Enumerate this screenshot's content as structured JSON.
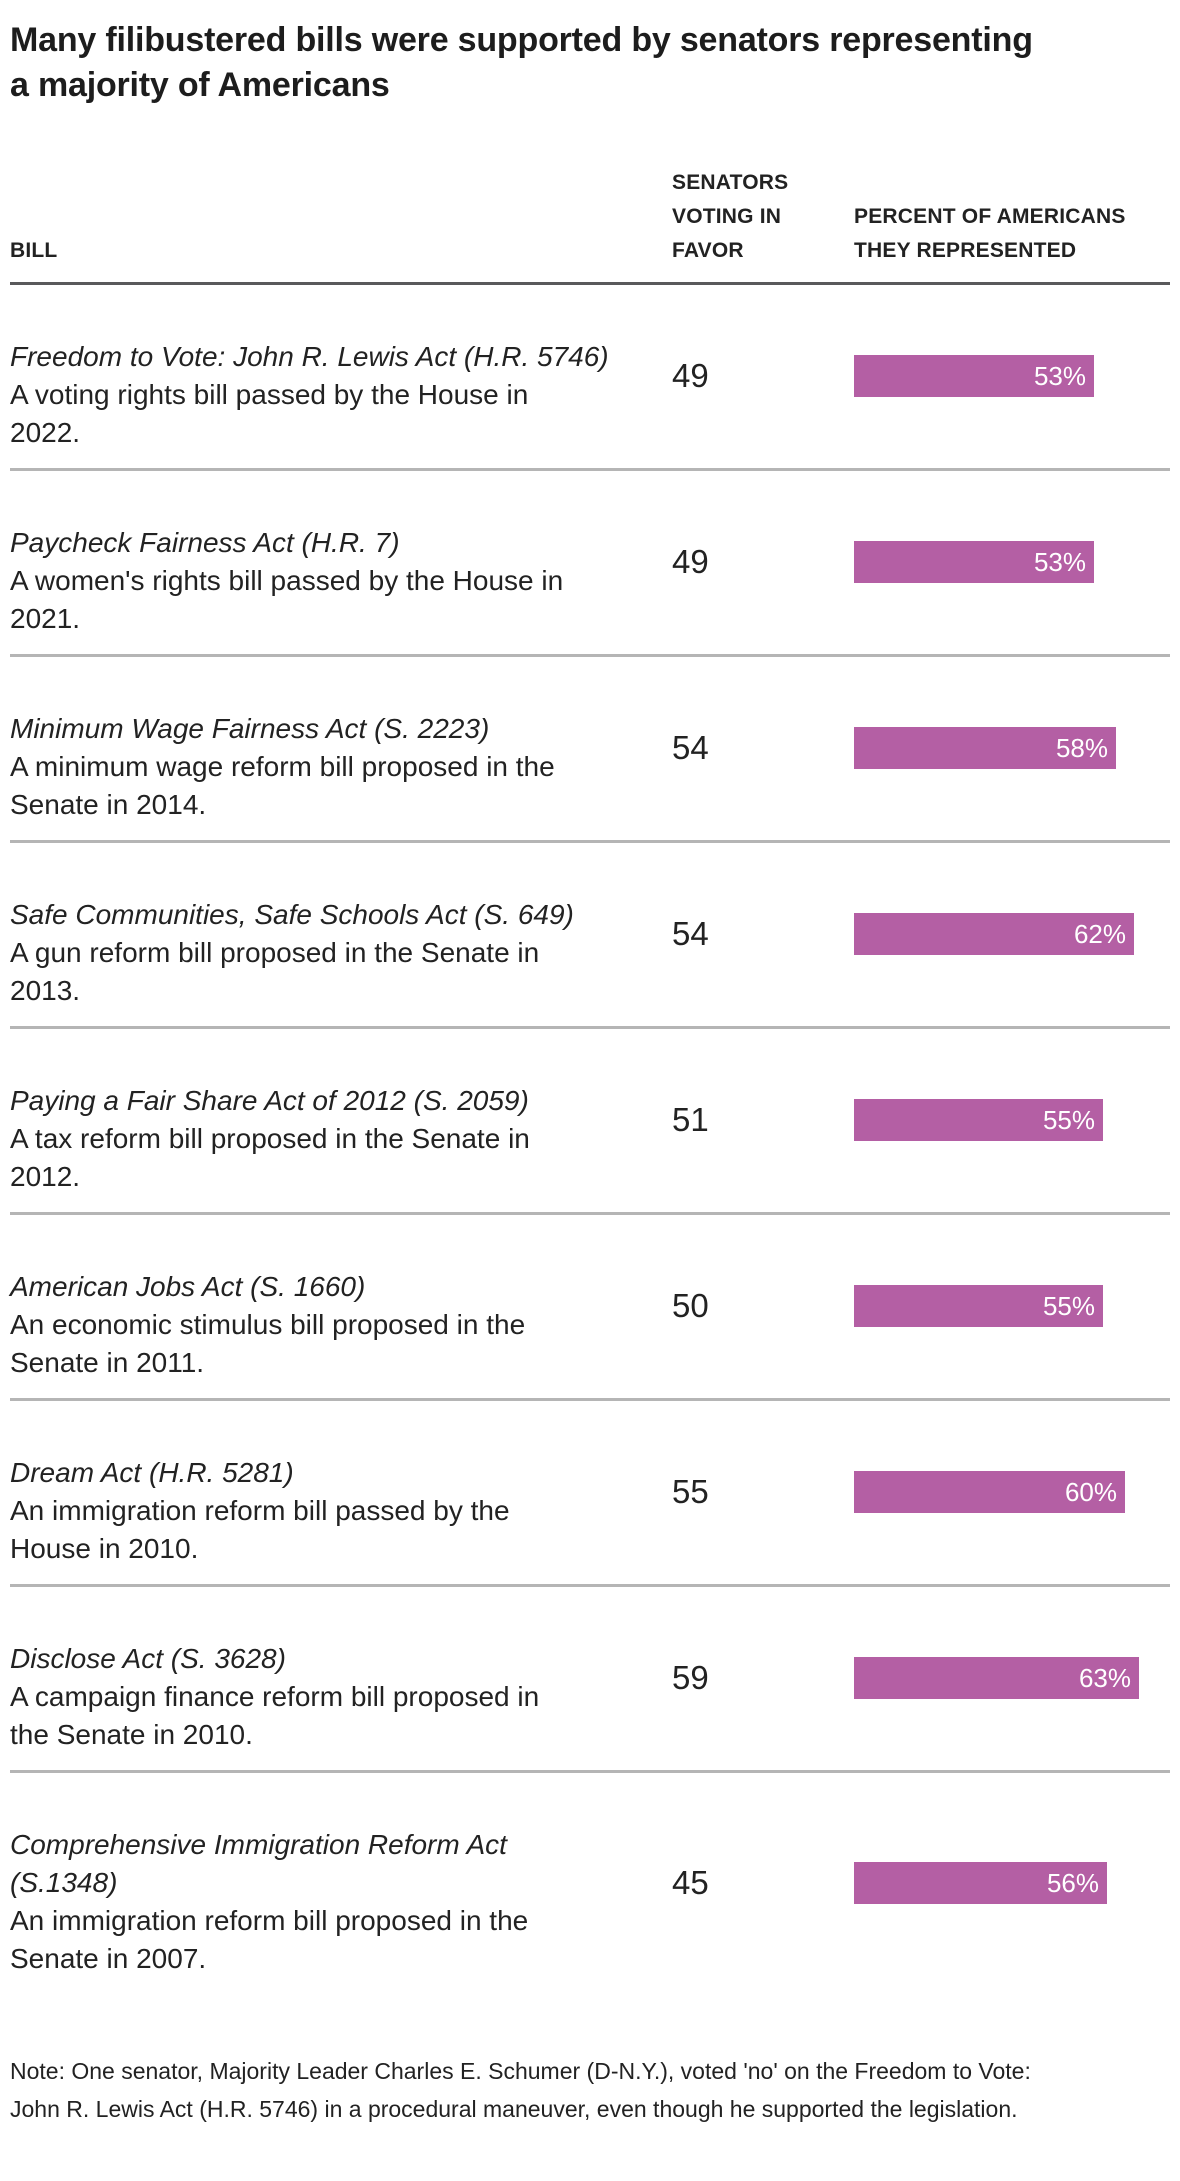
{
  "title": "Many filibustered bills were supported by senators representing\na majority of Americans",
  "table": {
    "headers": {
      "bill": "BILL",
      "votes": "SENATORS\nVOTING IN\nFAVOR",
      "percent": "PERCENT OF AMERICANS\nTHEY REPRESENTED"
    },
    "rows": [
      {
        "bill": "Freedom to Vote: John R. Lewis Act (H.R. 5746)",
        "description": "A voting rights bill passed by the House in\n2022.",
        "votes": "49",
        "percent": 53,
        "percent_label": "53%"
      },
      {
        "bill": "Paycheck Fairness Act (H.R. 7)",
        "description": "A women's rights bill passed by the House in\n2021.",
        "votes": "49",
        "percent": 53,
        "percent_label": "53%"
      },
      {
        "bill": "Minimum Wage Fairness Act (S. 2223)",
        "description": "A minimum wage reform bill proposed in the\nSenate in 2014.",
        "votes": "54",
        "percent": 58,
        "percent_label": "58%"
      },
      {
        "bill": "Safe Communities, Safe Schools Act (S. 649)",
        "description": "A gun reform bill proposed in the Senate in\n2013.",
        "votes": "54",
        "percent": 62,
        "percent_label": "62%"
      },
      {
        "bill": "Paying a Fair Share Act of 2012 (S. 2059)",
        "description": "A tax reform bill proposed in the Senate in\n2012.",
        "votes": "51",
        "percent": 55,
        "percent_label": "55%"
      },
      {
        "bill": "American Jobs Act (S. 1660)",
        "description": "An economic stimulus bill proposed in the\nSenate in 2011.",
        "votes": "50",
        "percent": 55,
        "percent_label": "55%"
      },
      {
        "bill": "Dream Act (H.R. 5281)",
        "description": "An immigration reform bill passed by the\nHouse in 2010.",
        "votes": "55",
        "percent": 60,
        "percent_label": "60%"
      },
      {
        "bill": "Disclose Act (S. 3628)",
        "description": "A campaign finance reform bill proposed in\nthe Senate in 2010.",
        "votes": "59",
        "percent": 63,
        "percent_label": "63%"
      },
      {
        "bill": "Comprehensive Immigration Reform Act\n(S.1348)",
        "description": "An immigration reform bill proposed in the\nSenate in 2007.",
        "votes": "45",
        "percent": 56,
        "percent_label": "56%"
      }
    ]
  },
  "note": "Note: One senator, Majority Leader Charles E. Schumer (D-N.Y.), voted 'no' on the Freedom to Vote:\nJohn R. Lewis Act (H.R. 5746) in a procedural maneuver, even though he supported the legislation.",
  "colors": {
    "bar": "#b45fa4",
    "bar_label": "#ffffff",
    "header_divider": "#59595b",
    "row_divider": "#b5b5b5",
    "text": "#222222"
  },
  "chart_data": {
    "type": "bar",
    "title": "Many filibustered bills were supported by senators representing a majority of Americans",
    "categories": [
      "Freedom to Vote: John R. Lewis Act (H.R. 5746)",
      "Paycheck Fairness Act (H.R. 7)",
      "Minimum Wage Fairness Act (S. 2223)",
      "Safe Communities, Safe Schools Act (S. 649)",
      "Paying a Fair Share Act of 2012 (S. 2059)",
      "American Jobs Act (S. 1660)",
      "Dream Act (H.R. 5281)",
      "Disclose Act (S. 3628)",
      "Comprehensive Immigration Reform Act (S.1348)"
    ],
    "series": [
      {
        "name": "Senators voting in favor",
        "values": [
          49,
          49,
          54,
          54,
          51,
          50,
          55,
          59,
          45
        ]
      },
      {
        "name": "Percent of Americans they represented",
        "values": [
          53,
          53,
          58,
          62,
          55,
          55,
          60,
          63,
          56
        ]
      }
    ],
    "bar_value_labels": [
      "53%",
      "53%",
      "58%",
      "62%",
      "55%",
      "55%",
      "60%",
      "63%",
      "56%"
    ],
    "orientation": "horizontal",
    "bar_axis": {
      "min": 0,
      "max_displayed": 63
    },
    "grid": false,
    "legend": "none",
    "note": "Note: One senator, Majority Leader Charles E. Schumer (D-N.Y.), voted 'no' on the Freedom to Vote: John R. Lewis Act (H.R. 5746) in a procedural maneuver, even though he supported the legislation."
  }
}
